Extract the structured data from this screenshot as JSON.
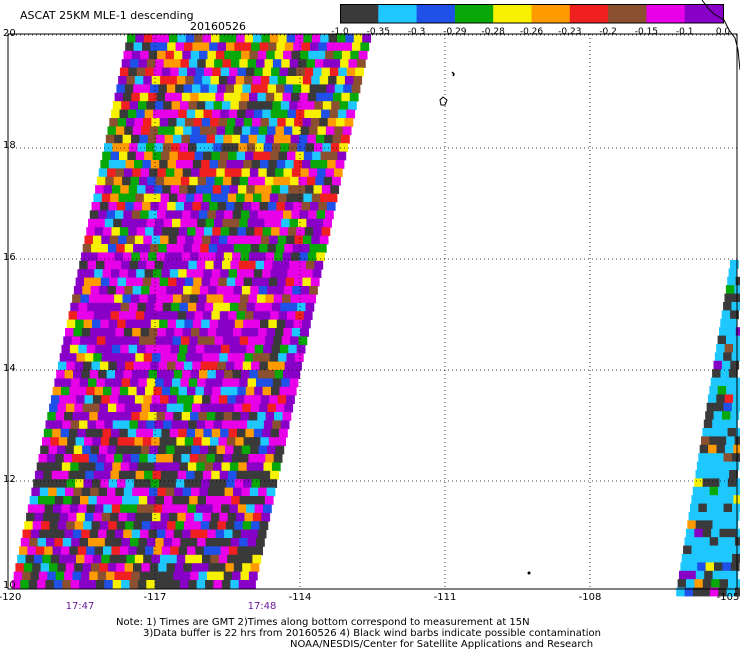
{
  "header": {
    "title": "ASCAT 25KM MLE-1 descending",
    "date": "20160526"
  },
  "colorbar": {
    "colors": [
      "#3a3a3a",
      "#1ec8ff",
      "#1f50e8",
      "#08a808",
      "#f7f000",
      "#ff9a00",
      "#f02020",
      "#8b5030",
      "#e800e8",
      "#8800c8"
    ],
    "labels": [
      "-1.0",
      "-0.35",
      "-0.3",
      "-0.29",
      "-0.28",
      "-0.26",
      "-0.23",
      "-0.2",
      "-0.15",
      "-0.1",
      "0.0"
    ]
  },
  "axes": {
    "lat_labels": [
      "20",
      "18",
      "16",
      "14",
      "12",
      "10"
    ],
    "lon_labels": [
      "-120",
      "-117",
      "-114",
      "-111",
      "-108",
      "-105"
    ]
  },
  "times": [
    "17:47",
    "17:48"
  ],
  "notes": {
    "line1": "Note: 1) Times are GMT 2)Times along bottom correspond to measurement at 15N",
    "line2": "3)Data buffer is 22 hrs from 20160526 4) Black wind barbs indicate possible contamination",
    "line3": "NOAA/NESDIS/Center for Satellite Applications and Research"
  }
}
